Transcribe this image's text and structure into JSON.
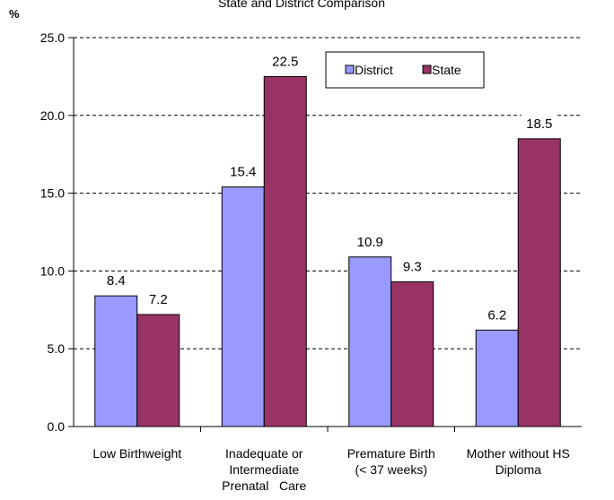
{
  "chart_data": {
    "type": "bar",
    "title": "State and District Comparison",
    "ylabel": "%",
    "xlabel": "",
    "ylim": [
      0,
      25
    ],
    "yticks": [
      "0.0",
      "5.0",
      "10.0",
      "15.0",
      "20.0",
      "25.0"
    ],
    "grid": true,
    "legend_position": "top-right",
    "categories": [
      [
        "Low Birthweight"
      ],
      [
        "Inadequate or",
        "Intermediate",
        "Prenatal   Care"
      ],
      [
        "Premature Birth",
        "(< 37 weeks)"
      ],
      [
        "Mother without HS",
        "Diploma"
      ]
    ],
    "series": [
      {
        "name": "District",
        "color": "#9999ff",
        "values": [
          8.4,
          15.4,
          10.9,
          6.2
        ],
        "labels": [
          "8.4",
          "15.4",
          "10.9",
          "6.2"
        ]
      },
      {
        "name": "State",
        "color": "#993366",
        "values": [
          7.2,
          22.5,
          9.3,
          18.5
        ],
        "labels": [
          "7.2",
          "22.5",
          "9.3",
          "18.5"
        ]
      }
    ]
  }
}
